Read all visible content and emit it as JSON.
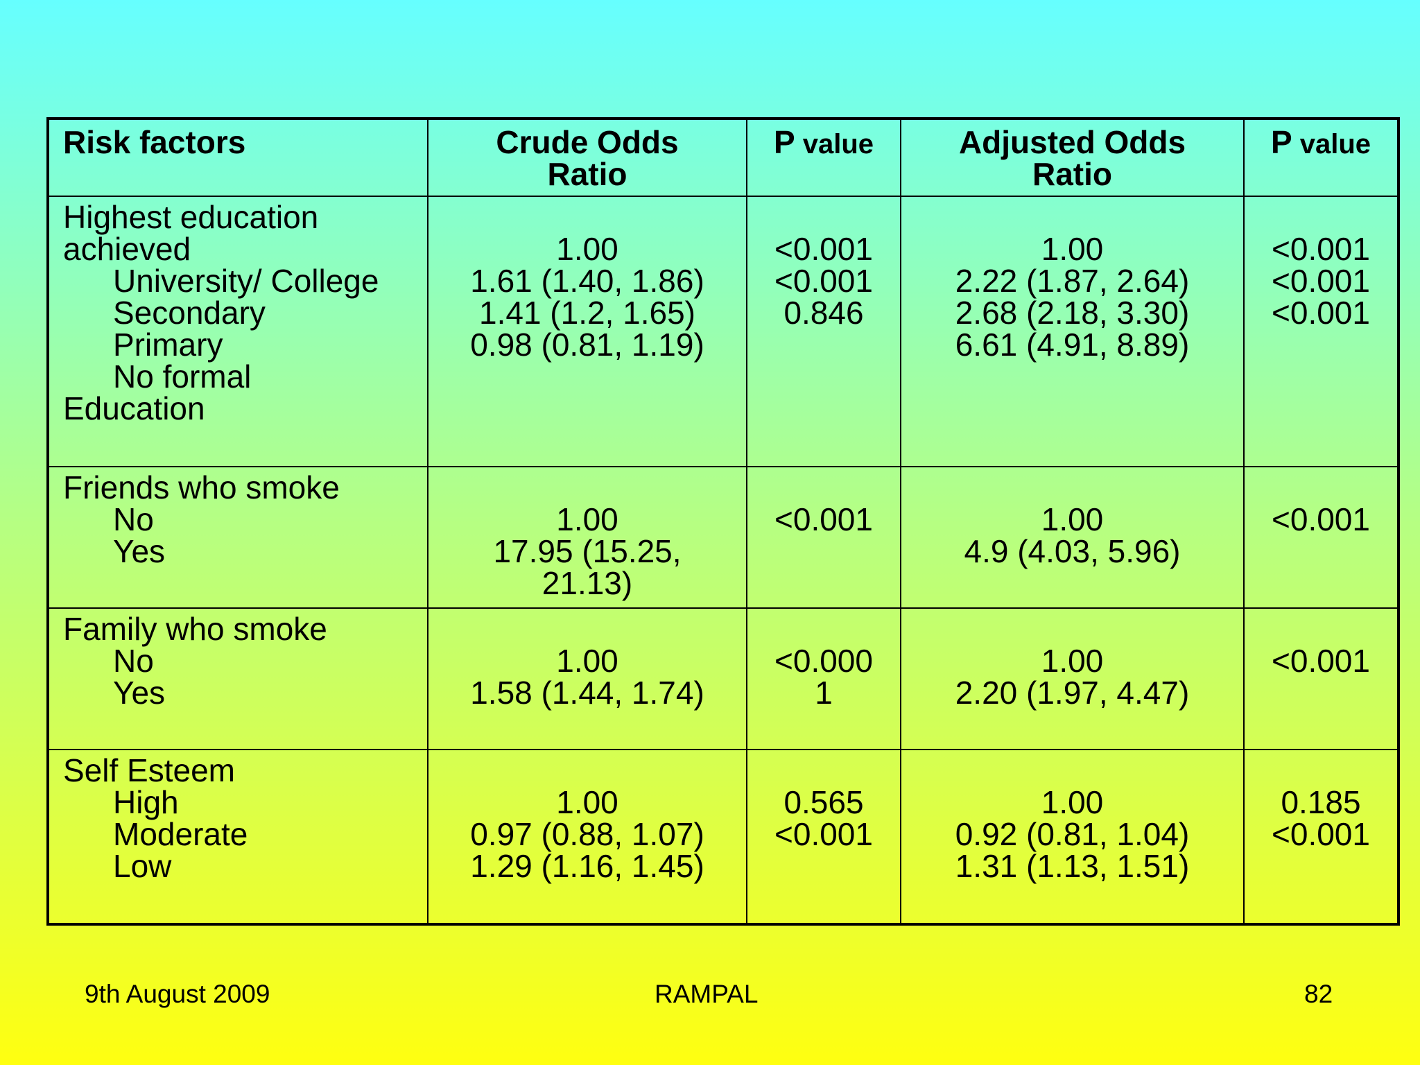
{
  "headers": {
    "risk": "Risk factors",
    "crude_1": "Crude Odds",
    "crude_2": "Ratio",
    "p_bold": "P",
    "p_rest": " value",
    "adj_1": "Adjusted Odds",
    "adj_2": "Ratio"
  },
  "rows": [
    {
      "labels": [
        "Highest education",
        "achieved",
        "University/ College",
        "Secondary",
        "Primary",
        "No formal",
        "Education"
      ],
      "crude": [
        "1.00",
        "1.61 (1.40, 1.86)",
        "1.41 (1.2, 1.65)",
        "0.98 (0.81, 1.19)"
      ],
      "p1": [
        "<0.001",
        "<0.001",
        "0.846"
      ],
      "adjusted": [
        "1.00",
        "2.22 (1.87, 2.64)",
        "2.68 (2.18, 3.30)",
        "6.61 (4.91, 8.89)"
      ],
      "p2": [
        "<0.001",
        "<0.001",
        "<0.001"
      ]
    },
    {
      "labels": [
        "Friends who smoke",
        "No",
        "Yes"
      ],
      "crude": [
        "1.00",
        "17.95 (15.25,",
        "21.13)"
      ],
      "p1": [
        "<0.001"
      ],
      "adjusted": [
        "1.00",
        "4.9 (4.03, 5.96)"
      ],
      "p2": [
        "<0.001"
      ]
    },
    {
      "labels": [
        "Family who smoke",
        "No",
        "Yes"
      ],
      "crude": [
        "1.00",
        "1.58 (1.44, 1.74)"
      ],
      "p1": [
        "<0.000",
        "1"
      ],
      "adjusted": [
        "1.00",
        "2.20 (1.97, 4.47)"
      ],
      "p2": [
        "<0.001"
      ]
    },
    {
      "labels": [
        "Self Esteem",
        "High",
        "Moderate",
        "Low"
      ],
      "crude": [
        "1.00",
        "0.97 (0.88, 1.07)",
        "1.29 (1.16, 1.45)"
      ],
      "p1": [
        "0.565",
        "<0.001"
      ],
      "adjusted": [
        "1.00",
        "0.92 (0.81, 1.04)",
        "1.31 (1.13, 1.51)"
      ],
      "p2": [
        "0.185",
        "<0.001"
      ]
    }
  ],
  "footer": {
    "date": "9th August 2009",
    "author": "RAMPAL",
    "page": "82"
  }
}
